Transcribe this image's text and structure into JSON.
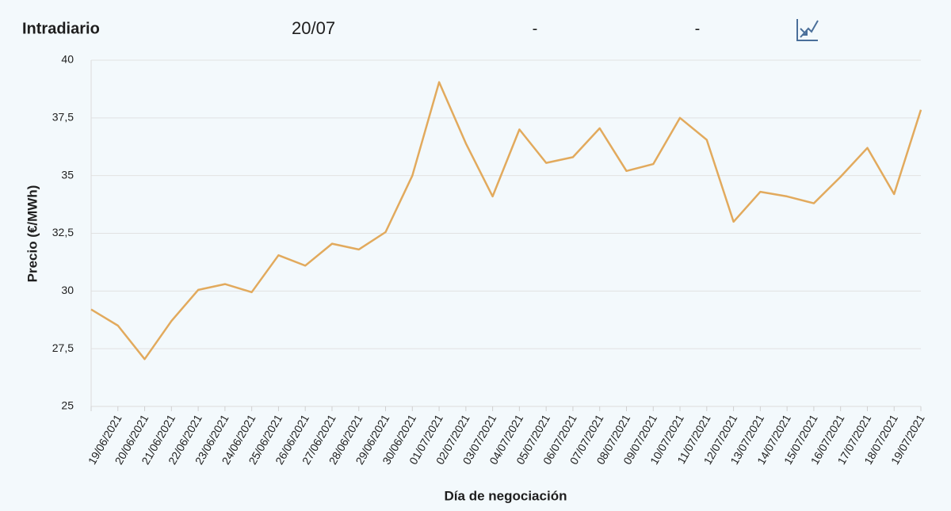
{
  "header": {
    "title": "Intradiario",
    "date": "20/07",
    "field1": "-",
    "field2": "-"
  },
  "chart_data": {
    "type": "line",
    "y_label": "Precio (€/MWh)",
    "x_label": "Día de negociación",
    "categories": [
      null,
      "19/06/2021",
      "20/06/2021",
      "21/06/2021",
      "22/06/2021",
      "23/06/2021",
      "24/06/2021",
      "25/06/2021",
      "26/06/2021",
      "27/06/2021",
      "28/06/2021",
      "29/06/2021",
      "30/06/2021",
      "01/07/2021",
      "02/07/2021",
      "03/07/2021",
      "04/07/2021",
      "05/07/2021",
      "06/07/2021",
      "07/07/2021",
      "08/07/2021",
      "09/07/2021",
      "10/07/2021",
      "11/07/2021",
      "12/07/2021",
      "13/07/2021",
      "14/07/2021",
      "15/07/2021",
      "16/07/2021",
      "17/07/2021",
      "18/07/2021",
      "19/07/2021"
    ],
    "series": [
      {
        "name": "Intradiario",
        "color": "#e2aa5d",
        "values": [
          29.2,
          28.5,
          27.05,
          28.7,
          30.05,
          30.3,
          29.95,
          31.55,
          31.1,
          32.05,
          31.8,
          32.55,
          35.0,
          39.05,
          36.4,
          34.1,
          37.0,
          35.55,
          35.8,
          37.05,
          35.2,
          35.5,
          37.5,
          36.55,
          33.0,
          34.3,
          34.1,
          33.8,
          34.95,
          36.2,
          34.2,
          37.85
        ]
      }
    ],
    "ylim": [
      25,
      40
    ],
    "yticks": [
      25,
      {
        "value": 27.5,
        "label": "27,5"
      },
      30,
      {
        "value": 32.5,
        "label": "32,5"
      },
      35,
      {
        "value": 37.5,
        "label": "37,5"
      },
      40
    ],
    "grid": true
  }
}
